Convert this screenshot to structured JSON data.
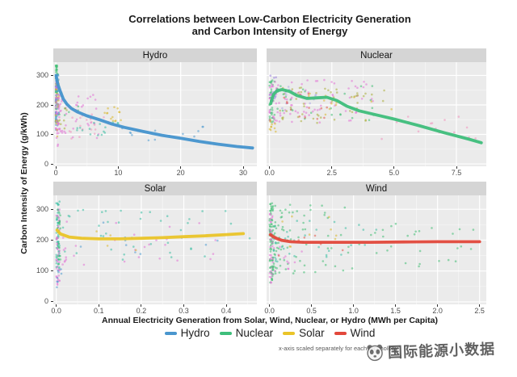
{
  "title": {
    "line1": "Correlations between Low-Carbon Electricity Generation",
    "line2": "and Carbon Intensity of Energy"
  },
  "axes": {
    "y_label": "Carbon Intensity of Energy (g/kWh)",
    "x_label": "Annual Electricity Generation from Solar, Wind, Nuclear, or Hydro (MWh per Capita)"
  },
  "caption": "x-axis scaled separately for each technology",
  "watermark": {
    "text": "国际能源小数据"
  },
  "legend": {
    "items": [
      {
        "label": "Hydro",
        "color": "#4A96CE"
      },
      {
        "label": "Nuclear",
        "color": "#3EBE7B"
      },
      {
        "label": "Solar",
        "color": "#EAC428"
      },
      {
        "label": "Wind",
        "color": "#E2483B"
      }
    ]
  },
  "palette": {
    "blue": "#4E9ACF",
    "green": "#3FBD72",
    "teal": "#38BDA3",
    "yellow": "#D8B62C",
    "olive": "#A9AD3A",
    "magenta": "#E273D5",
    "pink": "#F08FBB",
    "purple": "#9B82DC",
    "lavender": "#ABA6E4",
    "red": "#E05548"
  },
  "chart_data": {
    "type": "scatter",
    "title": "Correlations between Low-Carbon Electricity Generation and Carbon Intensity of Energy",
    "xlabel": "Annual Electricity Generation from Solar, Wind, Nuclear, or Hydro (MWh per Capita)",
    "ylabel": "Carbon Intensity of Energy (g/kWh)",
    "grid": "on",
    "legend_position": "bottom",
    "y_domain": [
      -8,
      345
    ],
    "y_ticks": {
      "values": [
        0,
        100,
        200,
        300
      ],
      "labels": [
        "0",
        "100",
        "200",
        "300"
      ]
    },
    "y_minor": [
      50,
      150,
      250
    ],
    "facets": [
      {
        "name": "Hydro",
        "line_color": "#4593CE",
        "x_domain": [
          -0.4,
          32.2
        ],
        "x_ticks": {
          "values": [
            0,
            10,
            20,
            30
          ],
          "labels": [
            "0",
            "10",
            "20",
            "30"
          ]
        },
        "trend": [
          [
            0.05,
            300
          ],
          [
            0.3,
            272
          ],
          [
            0.7,
            247
          ],
          [
            1.2,
            220
          ],
          [
            1.8,
            202
          ],
          [
            2.5,
            188
          ],
          [
            3.5,
            176
          ],
          [
            5,
            163
          ],
          [
            7,
            150
          ],
          [
            9,
            135
          ],
          [
            11,
            124
          ],
          [
            14,
            110
          ],
          [
            17,
            97
          ],
          [
            20,
            87
          ],
          [
            23,
            76
          ],
          [
            26,
            67
          ],
          [
            29,
            59
          ],
          [
            31.5,
            54
          ]
        ],
        "clusters": [
          {
            "color": "green",
            "n": 70,
            "x": [
              0,
              0.35
            ],
            "y": [
              140,
              335
            ],
            "bias": 2
          },
          {
            "color": "blue",
            "n": 45,
            "x": [
              0,
              0.5
            ],
            "y": [
              115,
              305
            ],
            "bias": 2
          },
          {
            "color": "yellow",
            "n": 26,
            "x": [
              0,
              0.6
            ],
            "y": [
              90,
              290
            ],
            "bias": 2
          },
          {
            "color": "magenta",
            "n": 36,
            "x": [
              0,
              0.8
            ],
            "y": [
              60,
              280
            ],
            "bias": 2
          },
          {
            "color": "purple",
            "n": 8,
            "x": [
              0,
              0.4
            ],
            "y": [
              200,
              300
            ],
            "bias": 1.5
          },
          {
            "color": "magenta",
            "n": 46,
            "x": [
              0.4,
              7
            ],
            "y": [
              88,
              235
            ],
            "bias": 1.8
          },
          {
            "color": "pink",
            "n": 22,
            "x": [
              2,
              8.5
            ],
            "y": [
              85,
              168
            ],
            "bias": 1.3
          },
          {
            "color": "yellow",
            "n": 14,
            "x": [
              7.5,
              11.5
            ],
            "y": [
              145,
              198
            ],
            "bias": 1
          },
          {
            "color": "teal",
            "n": 16,
            "x": [
              3,
              10
            ],
            "y": [
              95,
              150
            ],
            "bias": 1.2
          },
          {
            "color": "blue",
            "n": 14,
            "x": [
              10,
              26
            ],
            "y": [
              80,
              130
            ],
            "bias": 1
          },
          {
            "color": "green",
            "n": 10,
            "x": [
              0.5,
              4
            ],
            "y": [
              150,
              260
            ],
            "bias": 1.5
          },
          {
            "color": "olive",
            "n": 8,
            "x": [
              0.3,
              2
            ],
            "y": [
              120,
              200
            ],
            "bias": 1.5
          }
        ]
      },
      {
        "name": "Nuclear",
        "line_color": "#3EBE7B",
        "x_domain": [
          -0.12,
          8.7
        ],
        "x_ticks": {
          "values": [
            0,
            2.5,
            5,
            7.5
          ],
          "labels": [
            "0.0",
            "2.5",
            "5.0",
            "7.5"
          ]
        },
        "trend": [
          [
            0.05,
            205
          ],
          [
            0.15,
            235
          ],
          [
            0.3,
            248
          ],
          [
            0.5,
            252
          ],
          [
            0.8,
            246
          ],
          [
            1.1,
            232
          ],
          [
            1.5,
            222
          ],
          [
            1.9,
            224
          ],
          [
            2.3,
            226
          ],
          [
            2.7,
            215
          ],
          [
            3.1,
            196
          ],
          [
            3.6,
            180
          ],
          [
            4.2,
            168
          ],
          [
            5,
            152
          ],
          [
            6,
            130
          ],
          [
            7,
            106
          ],
          [
            8,
            84
          ],
          [
            8.5,
            72
          ]
        ],
        "clusters": [
          {
            "color": "green",
            "n": 40,
            "x": [
              0,
              0.2
            ],
            "y": [
              140,
              285
            ],
            "bias": 2
          },
          {
            "color": "magenta",
            "n": 30,
            "x": [
              0,
              0.35
            ],
            "y": [
              120,
              280
            ],
            "bias": 2
          },
          {
            "color": "purple",
            "n": 12,
            "x": [
              0,
              0.4
            ],
            "y": [
              220,
              300
            ],
            "bias": 1.5
          },
          {
            "color": "yellow",
            "n": 10,
            "x": [
              0,
              0.25
            ],
            "y": [
              95,
              150
            ],
            "bias": 1.5
          },
          {
            "color": "magenta",
            "n": 70,
            "x": [
              0.2,
              4.2
            ],
            "y": [
              140,
              285
            ],
            "bias": 1.6
          },
          {
            "color": "olive",
            "n": 50,
            "x": [
              0.4,
              4.8
            ],
            "y": [
              135,
              265
            ],
            "bias": 1.4
          },
          {
            "color": "green",
            "n": 28,
            "x": [
              0.3,
              4.2
            ],
            "y": [
              145,
              265
            ],
            "bias": 1.5
          },
          {
            "color": "lavender",
            "n": 12,
            "x": [
              0.4,
              2.2
            ],
            "y": [
              185,
              265
            ],
            "bias": 1.3
          },
          {
            "color": "pink",
            "n": 16,
            "x": [
              4.5,
              8.3
            ],
            "y": [
              75,
              165
            ],
            "bias": 1
          },
          {
            "color": "red",
            "n": 14,
            "x": [
              0.3,
              3
            ],
            "y": [
              150,
              250
            ],
            "bias": 1.4
          },
          {
            "color": "yellow",
            "n": 12,
            "x": [
              1.5,
              5
            ],
            "y": [
              160,
              240
            ],
            "bias": 1.2
          }
        ]
      },
      {
        "name": "Solar",
        "line_color": "#EAC428",
        "x_domain": [
          -0.007,
          0.472
        ],
        "x_ticks": {
          "values": [
            0,
            0.1,
            0.2,
            0.3,
            0.4
          ],
          "labels": [
            "0.0",
            "0.1",
            "0.2",
            "0.3",
            "0.4"
          ]
        },
        "trend": [
          [
            0.002,
            232
          ],
          [
            0.01,
            220
          ],
          [
            0.03,
            210
          ],
          [
            0.06,
            206
          ],
          [
            0.1,
            204
          ],
          [
            0.15,
            204
          ],
          [
            0.2,
            206
          ],
          [
            0.25,
            208
          ],
          [
            0.3,
            211
          ],
          [
            0.35,
            214
          ],
          [
            0.4,
            218
          ],
          [
            0.44,
            221
          ]
        ],
        "clusters": [
          {
            "color": "teal",
            "n": 60,
            "x": [
              0,
              0.008
            ],
            "y": [
              95,
              325
            ],
            "bias": 1
          },
          {
            "color": "magenta",
            "n": 40,
            "x": [
              0,
              0.008
            ],
            "y": [
              55,
              305
            ],
            "bias": 1
          },
          {
            "color": "green",
            "n": 20,
            "x": [
              0,
              0.01
            ],
            "y": [
              120,
              300
            ],
            "bias": 1
          },
          {
            "color": "blue",
            "n": 8,
            "x": [
              0,
              0.012
            ],
            "y": [
              45,
              110
            ],
            "bias": 1
          },
          {
            "color": "teal",
            "n": 40,
            "x": [
              0.015,
              0.46
            ],
            "y": [
              130,
              305
            ],
            "bias": 1.4
          },
          {
            "color": "magenta",
            "n": 30,
            "x": [
              0.015,
              0.42
            ],
            "y": [
              115,
              265
            ],
            "bias": 1.5
          },
          {
            "color": "blue",
            "n": 10,
            "x": [
              0.05,
              0.4
            ],
            "y": [
              150,
              260
            ],
            "bias": 1.2
          },
          {
            "color": "yellow",
            "n": 6,
            "x": [
              0.01,
              0.2
            ],
            "y": [
              160,
              230
            ],
            "bias": 1.3
          }
        ]
      },
      {
        "name": "Wind",
        "line_color": "#E2483B",
        "x_domain": [
          -0.035,
          2.58
        ],
        "x_ticks": {
          "values": [
            0,
            0.5,
            1,
            1.5,
            2,
            2.5
          ],
          "labels": [
            "0.0",
            "0.5",
            "1.0",
            "1.5",
            "2.0",
            "2.5"
          ]
        },
        "trend": [
          [
            0.01,
            218
          ],
          [
            0.04,
            212
          ],
          [
            0.08,
            206
          ],
          [
            0.15,
            199
          ],
          [
            0.25,
            195
          ],
          [
            0.4,
            193
          ],
          [
            0.6,
            193
          ],
          [
            0.9,
            193
          ],
          [
            1.2,
            193
          ],
          [
            1.6,
            194
          ],
          [
            2.0,
            195
          ],
          [
            2.5,
            195
          ]
        ],
        "clusters": [
          {
            "color": "green",
            "n": 70,
            "x": [
              0,
              0.04
            ],
            "y": [
              55,
              330
            ],
            "bias": 1
          },
          {
            "color": "magenta",
            "n": 30,
            "x": [
              0,
              0.04
            ],
            "y": [
              60,
              300
            ],
            "bias": 1
          },
          {
            "color": "green",
            "n": 90,
            "x": [
              0.04,
              1.0
            ],
            "y": [
              85,
              315
            ],
            "bias": 2.2
          },
          {
            "color": "teal",
            "n": 35,
            "x": [
              0.05,
              1.3
            ],
            "y": [
              130,
              265
            ],
            "bias": 1.8
          },
          {
            "color": "green",
            "n": 28,
            "x": [
              1.0,
              2.5
            ],
            "y": [
              115,
              265
            ],
            "bias": 1
          },
          {
            "color": "yellow",
            "n": 10,
            "x": [
              0.1,
              0.8
            ],
            "y": [
              150,
              280
            ],
            "bias": 1.5
          },
          {
            "color": "magenta",
            "n": 12,
            "x": [
              0.05,
              0.6
            ],
            "y": [
              90,
              180
            ],
            "bias": 1.5
          },
          {
            "color": "red",
            "n": 6,
            "x": [
              0.1,
              0.9
            ],
            "y": [
              140,
              220
            ],
            "bias": 1.2
          }
        ]
      }
    ]
  }
}
